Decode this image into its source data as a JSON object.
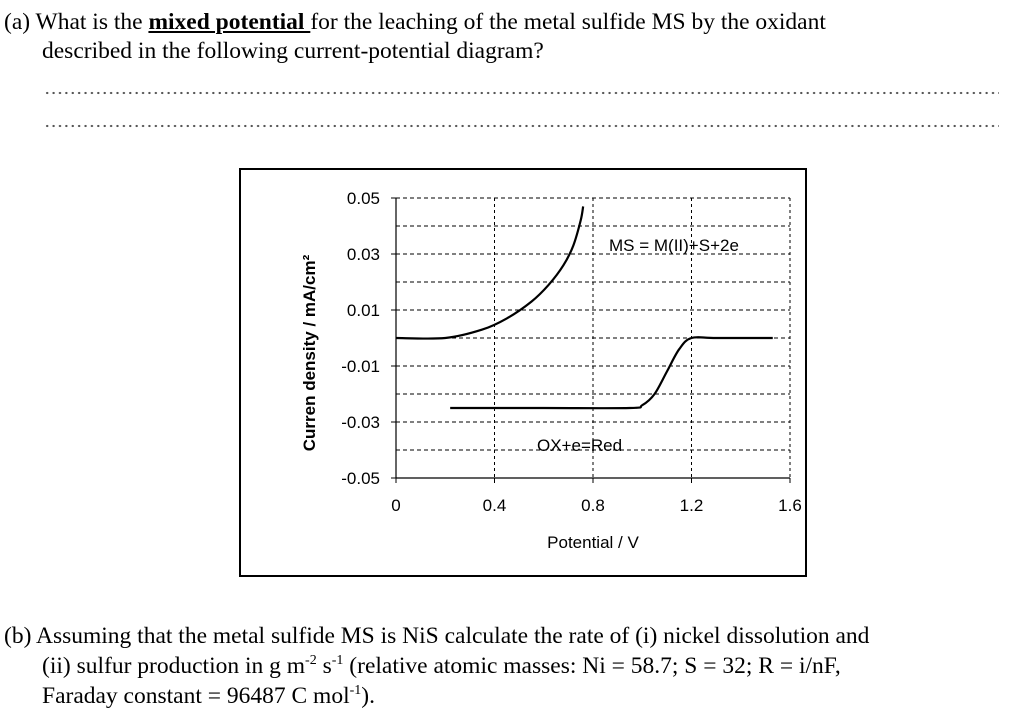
{
  "question_a": {
    "prefix": "(a) What is the ",
    "emph": "mixed potential ",
    "rest1": "for the leaching of the metal sulfide MS by the oxidant",
    "line2": "described in the following current-potential diagram?"
  },
  "chart_data": {
    "type": "line",
    "xlabel": "Potential / V",
    "ylabel": "Curren density / mA/cm²",
    "xlim": [
      0,
      1.6
    ],
    "ylim": [
      -0.05,
      0.05
    ],
    "x_ticks": [
      "0",
      "0.4",
      "0.8",
      "1.2",
      "1.6"
    ],
    "y_ticks": [
      "0.05",
      "0.03",
      "0.01",
      "-0.01",
      "-0.03",
      "-0.05"
    ],
    "grid": true,
    "series": [
      {
        "name": "MS = M(II)+S+2e",
        "label": "MS = M(II)+S+2e",
        "x": [
          0,
          0.2,
          0.35,
          0.45,
          0.55,
          0.62,
          0.68,
          0.72,
          0.75,
          0.76
        ],
        "y": [
          0.0,
          0.0,
          0.003,
          0.007,
          0.013,
          0.019,
          0.026,
          0.033,
          0.042,
          0.047
        ]
      },
      {
        "name": "OX+e=Red",
        "label": "OX+e=Red",
        "x": [
          0.22,
          0.6,
          0.95,
          1.0,
          1.05,
          1.1,
          1.15,
          1.2,
          1.3,
          1.53
        ],
        "y": [
          -0.025,
          -0.025,
          -0.025,
          -0.024,
          -0.02,
          -0.012,
          -0.004,
          0.0,
          0.0,
          0.0
        ]
      }
    ]
  },
  "question_b": {
    "l1": "(b) Assuming that the metal sulfide MS is NiS calculate the rate of (i) nickel dissolution and",
    "l2a": "(ii) sulfur production in g m",
    "l2sup1": "-2",
    "l2b": " s",
    "l2sup2": "-1",
    "l2c": " (relative atomic masses: Ni = 58.7; S = 32; R = i/nF,",
    "l3a": "Faraday constant = 96487 C mol",
    "l3sup": "-1",
    "l3b": ")."
  }
}
